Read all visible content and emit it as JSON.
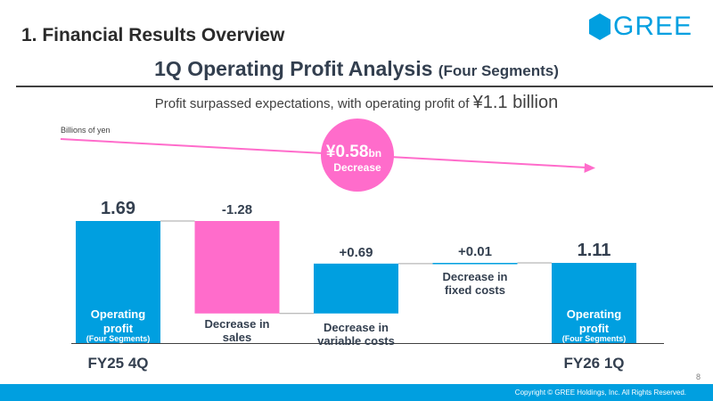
{
  "header": {
    "section_title": "1. Financial Results Overview",
    "logo_text": "GREE",
    "main_title": "1Q Operating Profit Analysis",
    "main_title_sub": "(Four Segments)",
    "subtitle_prefix": "Profit surpassed expectations, with operating profit of ",
    "subtitle_value": "¥1.1 billion"
  },
  "chart_data": {
    "type": "waterfall",
    "unit_label": "Billions of yen",
    "bars": [
      {
        "kind": "total",
        "start": 0,
        "end": 1.69,
        "value_label": "1.69",
        "label_line1": "Operating",
        "label_line2": "profit",
        "label_line3": "(Four Segments)",
        "color": "#009fe0"
      },
      {
        "kind": "delta",
        "start": 1.69,
        "end": 0.41,
        "value_label": "-1.28",
        "label_line1": "Decrease in",
        "label_line2": "sales",
        "label_line3": "",
        "color": "#ff6ccb"
      },
      {
        "kind": "delta",
        "start": 0.41,
        "end": 1.1,
        "value_label": "+0.69",
        "label_line1": "Decrease in",
        "label_line2": "variable costs",
        "label_line3": "",
        "color": "#009fe0"
      },
      {
        "kind": "delta",
        "start": 1.1,
        "end": 1.11,
        "value_label": "+0.01",
        "label_line1": "Decrease in",
        "label_line2": "fixed costs",
        "label_line3": "",
        "color": "#009fe0"
      },
      {
        "kind": "total",
        "start": 0,
        "end": 1.11,
        "value_label": "1.11",
        "label_line1": "Operating",
        "label_line2": "profit",
        "label_line3": "(Four Segments)",
        "color": "#009fe0"
      }
    ],
    "x_labels": [
      {
        "bar_index": 0,
        "text": "FY25 4Q"
      },
      {
        "bar_index": 4,
        "text": "FY26 1Q"
      }
    ],
    "annotation": {
      "value": "¥0.58",
      "suffix": "bn",
      "text": "Decrease"
    },
    "ylim": [
      0,
      1.69
    ]
  },
  "footer": {
    "copyright": "Copyright © GREE Holdings, Inc. All Rights Reserved.",
    "page_number": "8"
  }
}
